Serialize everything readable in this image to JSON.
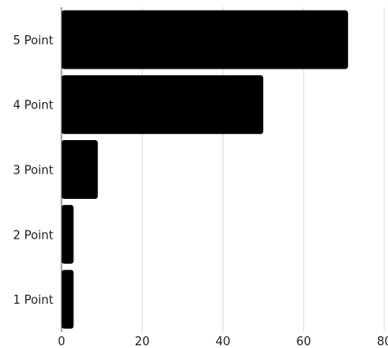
{
  "chart_data": {
    "type": "bar",
    "orientation": "horizontal",
    "categories": [
      "5 Point",
      "4 Point",
      "3 Point",
      "2 Point",
      "1 Point"
    ],
    "values": [
      71,
      50,
      9,
      3,
      3
    ],
    "xlim": [
      0,
      80
    ],
    "xticks": [
      "0",
      "20",
      "40",
      "60",
      "80"
    ],
    "grid": "vertical",
    "bar_color": "#000000",
    "grid_color": "#dddddd",
    "axis_color": "#555555"
  }
}
